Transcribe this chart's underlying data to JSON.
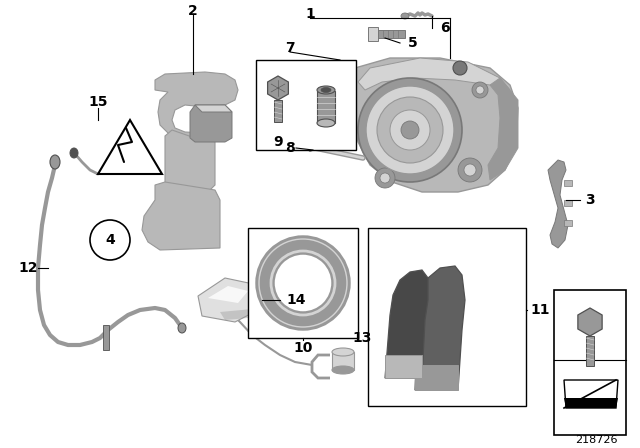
{
  "bg_color": "#ffffff",
  "diagram_id": "218726",
  "gray1": "#b8b8b8",
  "gray2": "#989898",
  "gray3": "#d4d4d4",
  "gray4": "#787878",
  "dark": "#505050"
}
